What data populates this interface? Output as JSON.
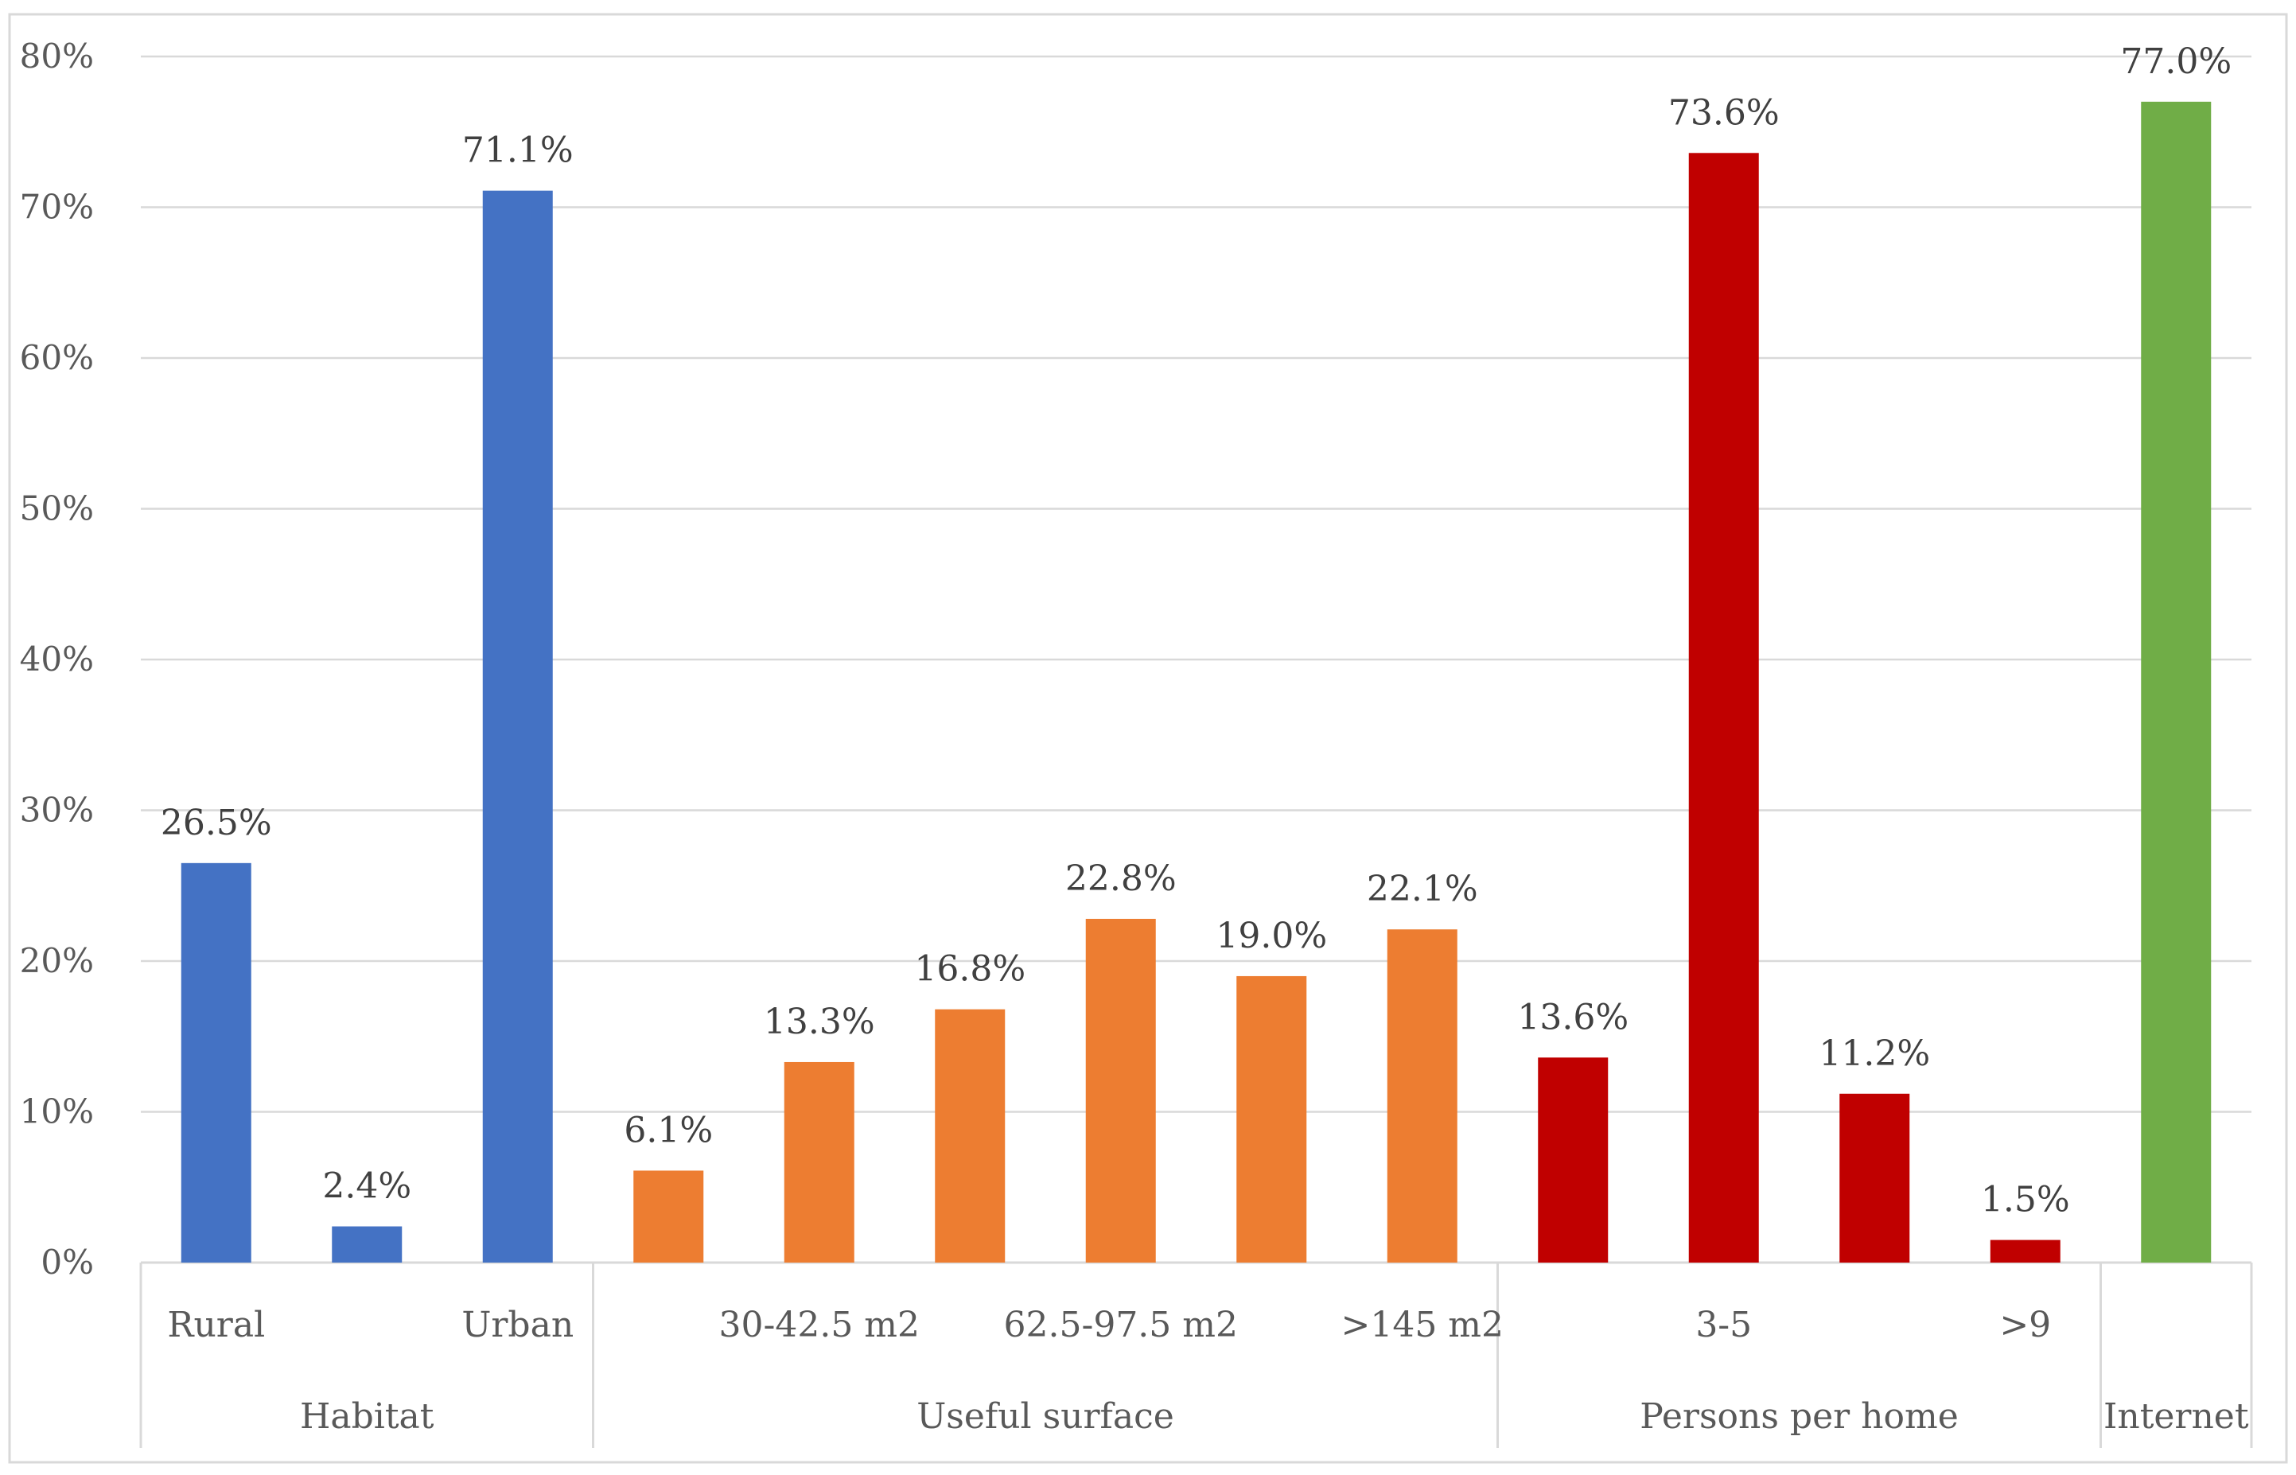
{
  "chart_data": {
    "type": "bar",
    "title": "",
    "xlabel": "",
    "ylabel": "",
    "ylim": [
      0,
      80
    ],
    "y_ticks": [
      0,
      10,
      20,
      30,
      40,
      50,
      60,
      70,
      80
    ],
    "y_tick_labels": [
      "0%",
      "10%",
      "20%",
      "30%",
      "40%",
      "50%",
      "60%",
      "70%",
      "80%"
    ],
    "grid": true,
    "legend": "none",
    "bars": [
      {
        "category": "Rural",
        "value": 26.5,
        "label": "26.5%",
        "group": 0
      },
      {
        "category": "",
        "value": 2.4,
        "label": "2.4%",
        "group": 0
      },
      {
        "category": "Urban",
        "value": 71.1,
        "label": "71.1%",
        "group": 0
      },
      {
        "category": "",
        "value": 6.1,
        "label": "6.1%",
        "group": 1
      },
      {
        "category": "30-42.5 m2",
        "value": 13.3,
        "label": "13.3%",
        "group": 1
      },
      {
        "category": "",
        "value": 16.8,
        "label": "16.8%",
        "group": 1
      },
      {
        "category": "62.5-97.5 m2",
        "value": 22.8,
        "label": "22.8%",
        "group": 1
      },
      {
        "category": "",
        "value": 19.0,
        "label": "19.0%",
        "group": 1
      },
      {
        "category": ">145 m2",
        "value": 22.1,
        "label": "22.1%",
        "group": 1
      },
      {
        "category": "",
        "value": 13.6,
        "label": "13.6%",
        "group": 2
      },
      {
        "category": "3-5",
        "value": 73.6,
        "label": "73.6%",
        "group": 2
      },
      {
        "category": "",
        "value": 11.2,
        "label": "11.2%",
        "group": 2
      },
      {
        "category": ">9",
        "value": 1.5,
        "label": "1.5%",
        "group": 2
      },
      {
        "category": "",
        "value": 77.0,
        "label": "77.0%",
        "group": 3
      }
    ],
    "groups": [
      {
        "name": "Habitat",
        "color": "#4472C4"
      },
      {
        "name": "Useful surface",
        "color": "#ED7D31"
      },
      {
        "name": "Persons per home",
        "color": "#C00000"
      },
      {
        "name": "Internet",
        "color": "#70AD47"
      }
    ]
  }
}
